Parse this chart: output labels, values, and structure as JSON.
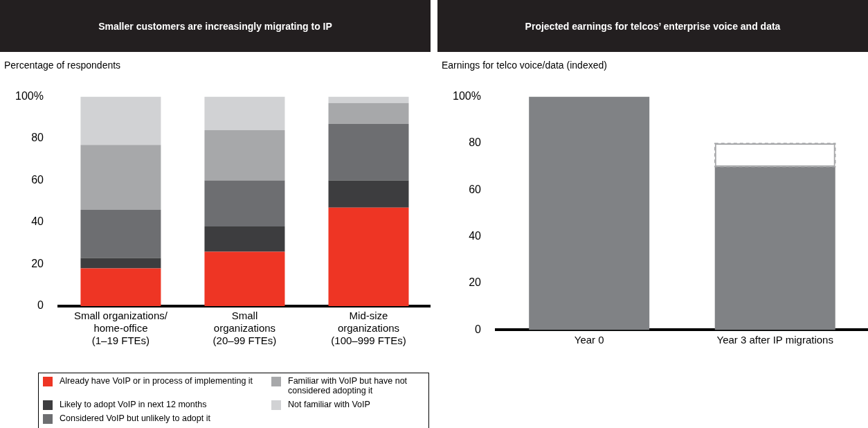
{
  "chart_data": [
    {
      "type": "bar",
      "title": "Smaller customers are increasingly migrating to IP",
      "ylabel": "Percentage of respondents",
      "categories": [
        "Small organizations/\nhome-office\n(1–19 FTEs)",
        "Small\norganizations\n(20–99 FTEs)",
        "Mid-size\norganizations\n(100–999 FTEs)"
      ],
      "stacked": true,
      "legend": "bottom",
      "grid": false,
      "ylim": [
        0,
        100
      ],
      "yticks": [
        0,
        20,
        40,
        60,
        80,
        {
          "value": 100,
          "label": "100%"
        }
      ],
      "series": [
        {
          "name": "Already have VoIP or in process of implementing it",
          "color": "#ee3524",
          "values": [
            18,
            26,
            47
          ]
        },
        {
          "name": "Likely to adopt VoIP in next 12 months",
          "color": "#3d3d3f",
          "values": [
            5,
            12,
            13
          ]
        },
        {
          "name": "Considered VoIP but unlikely to adopt it",
          "color": "#6d6e71",
          "values": [
            23,
            22,
            27
          ]
        },
        {
          "name": "Familiar with VoIP but have not considered adopting it",
          "color": "#a7a8aa",
          "values": [
            31,
            24,
            10
          ]
        },
        {
          "name": "Not familiar with VoIP",
          "color": "#d1d2d4",
          "values": [
            23,
            16,
            3
          ]
        }
      ]
    },
    {
      "type": "bar",
      "title": "Projected earnings for telcos’ enterprise voice and data",
      "ylabel": "Earnings for telco voice/data (indexed)",
      "categories": [
        "Year 0",
        "Year 3 after IP migrations"
      ],
      "stacked": true,
      "grid": false,
      "ylim": [
        0,
        100
      ],
      "yticks": [
        0,
        20,
        40,
        60,
        80,
        {
          "value": 100,
          "label": "100%"
        }
      ],
      "series": [
        {
          "color": "#808285",
          "values": [
            100,
            70
          ]
        },
        {
          "color": "#a7a8aa",
          "line_style": "dashed",
          "values": [
            null,
            10
          ]
        }
      ]
    }
  ]
}
